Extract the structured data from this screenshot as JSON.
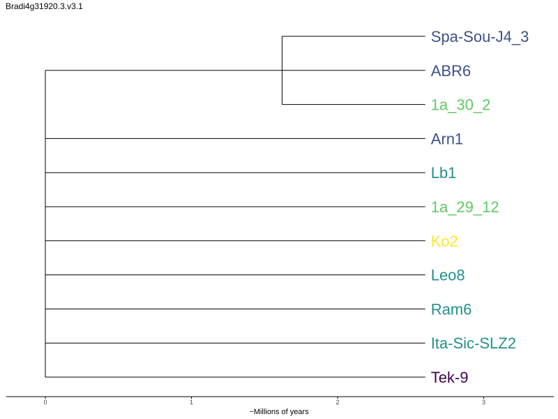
{
  "title": "Bradi4g31920.3.v3.1",
  "tree": {
    "leaves": [
      {
        "name": "Spa-Sou-J4_3",
        "color": "#3e5088",
        "age": 2.6
      },
      {
        "name": "ABR6",
        "color": "#3e5088",
        "age": 2.6
      },
      {
        "name": "1a_30_2",
        "color": "#5ec962",
        "age": 2.6
      },
      {
        "name": "Arn1",
        "color": "#3e5088",
        "age": 2.6
      },
      {
        "name": "Lb1",
        "color": "#21908d",
        "age": 2.6
      },
      {
        "name": "1a_29_12",
        "color": "#5ec962",
        "age": 2.6
      },
      {
        "name": "Ko2",
        "color": "#fde725",
        "age": 2.6
      },
      {
        "name": "Leo8",
        "color": "#21908d",
        "age": 2.6
      },
      {
        "name": "Ram6",
        "color": "#21908d",
        "age": 2.6
      },
      {
        "name": "Ita-Sic-SLZ2",
        "color": "#21908d",
        "age": 2.6
      },
      {
        "name": "Tek-9",
        "color": "#440154",
        "age": 2.6
      }
    ],
    "clade": {
      "members": [
        0,
        1,
        2
      ],
      "age": 1.62,
      "stem_age": 0
    }
  },
  "axis": {
    "label": "~Millions of years",
    "ticks": [
      "0",
      "1",
      "2",
      "3"
    ],
    "range": [
      -0.27,
      3.5
    ]
  }
}
